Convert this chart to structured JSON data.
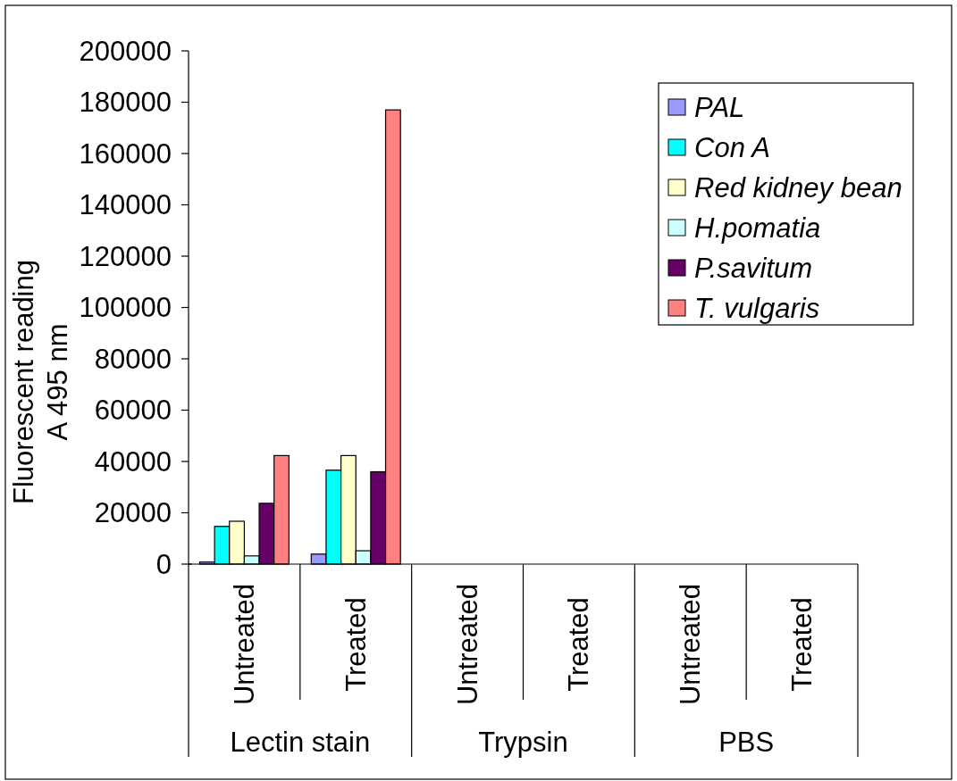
{
  "chart_data": {
    "type": "bar",
    "ylabel": "Fluorescent reading\nA 495 nm",
    "categories": [
      "Untreated",
      "Treated",
      "Untreated",
      "Treated",
      "Untreated",
      "Treated"
    ],
    "annotations": [
      "Lectin stain",
      "Trypsin",
      "PBS"
    ],
    "series": [
      {
        "name": "PAL",
        "color": "#9999ff",
        "values": [
          800,
          3900,
          null,
          null,
          null,
          null
        ]
      },
      {
        "name": "Con A",
        "color": "#00ffff",
        "values": [
          14700,
          36600,
          null,
          null,
          null,
          null
        ]
      },
      {
        "name": "Red kidney bean",
        "color": "#ffffcc",
        "values": [
          16700,
          42300,
          null,
          null,
          null,
          null
        ]
      },
      {
        "name": "H.pomatia",
        "color": "#ccffff",
        "values": [
          3200,
          5200,
          null,
          null,
          null,
          null
        ]
      },
      {
        "name": "P.savitum",
        "color": "#660066",
        "values": [
          23700,
          36000,
          null,
          null,
          null,
          null
        ]
      },
      {
        "name": "T. vulgaris",
        "color": "#ff8080",
        "values": [
          42300,
          177000,
          null,
          null,
          null,
          null
        ]
      }
    ],
    "ylim": [
      0,
      200000
    ],
    "yticks": [
      0,
      20000,
      40000,
      60000,
      80000,
      100000,
      120000,
      140000,
      160000,
      180000,
      200000
    ],
    "legend": "top right"
  }
}
